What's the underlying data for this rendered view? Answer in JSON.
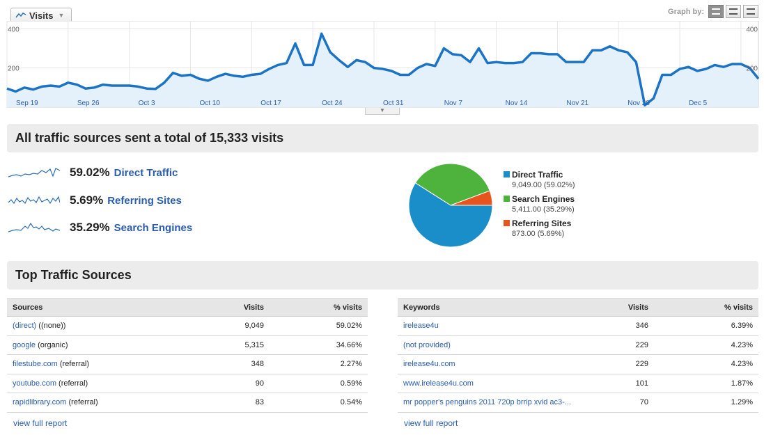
{
  "chart": {
    "tab_label": "Visits",
    "graph_by_label": "Graph by:",
    "y_tick_labels": [
      "400",
      "200"
    ],
    "x_tick_labels": [
      "Sep 19",
      "Sep 26",
      "Oct 3",
      "Oct 10",
      "Oct 17",
      "Oct 24",
      "Oct 31",
      "Nov 7",
      "Nov 14",
      "Nov 21",
      "Nov 28",
      "Dec 5"
    ]
  },
  "chart_data": [
    {
      "type": "area",
      "series": [
        {
          "name": "Visits",
          "values": [
            95,
            80,
            100,
            90,
            105,
            110,
            105,
            125,
            115,
            95,
            100,
            115,
            110,
            110,
            110,
            105,
            95,
            93,
            125,
            175,
            160,
            165,
            145,
            135,
            155,
            170,
            160,
            155,
            165,
            170,
            195,
            215,
            225,
            325,
            215,
            215,
            375,
            280,
            240,
            205,
            240,
            230,
            200,
            195,
            185,
            165,
            165,
            200,
            220,
            210,
            300,
            270,
            265,
            230,
            300,
            225,
            230,
            225,
            225,
            230,
            275,
            275,
            270,
            270,
            230,
            230,
            230,
            290,
            290,
            310,
            290,
            280,
            230,
            10,
            45,
            165,
            165,
            195,
            205,
            185,
            195,
            215,
            205,
            220,
            220,
            200,
            145
          ]
        }
      ],
      "ylim": [
        0,
        440
      ],
      "yticks": [
        200,
        400
      ],
      "grid": true
    },
    {
      "type": "pie",
      "categories": [
        "Direct Traffic",
        "Search Engines",
        "Referring Sites"
      ],
      "values": [
        9049.0,
        5411.0,
        873.0
      ],
      "percents": [
        59.02,
        35.29,
        5.69
      ]
    }
  ],
  "summary": {
    "title": "All traffic sources sent a total of 15,333 visits",
    "rows": [
      {
        "pct": "59.02%",
        "name": "Direct Traffic"
      },
      {
        "pct": "5.69%",
        "name": "Referring Sites"
      },
      {
        "pct": "35.29%",
        "name": "Search Engines"
      }
    ]
  },
  "pie_legend": [
    {
      "name": "Direct Traffic",
      "value": "9,049.00 (59.02%)"
    },
    {
      "name": "Search Engines",
      "value": "5,411.00 (35.29%)"
    },
    {
      "name": "Referring Sites",
      "value": "873.00 (5.69%)"
    }
  ],
  "colors": {
    "direct": "#1a8ec9",
    "search": "#4db33d",
    "referring": "#e8541e",
    "line": "#1a73c4",
    "fill": "#e5f1fa"
  },
  "top_sources": {
    "title": "Top Traffic Sources",
    "sources_table": {
      "headers": [
        "Sources",
        "Visits",
        "% visits"
      ],
      "rows": [
        {
          "link": "(direct)",
          "suffix": " ((none))",
          "visits": "9,049",
          "pct": "59.02%"
        },
        {
          "link": "google",
          "suffix": " (organic)",
          "visits": "5,315",
          "pct": "34.66%"
        },
        {
          "link": "filestube.com",
          "suffix": " (referral)",
          "visits": "348",
          "pct": "2.27%"
        },
        {
          "link": "youtube.com",
          "suffix": " (referral)",
          "visits": "90",
          "pct": "0.59%"
        },
        {
          "link": "rapidlibrary.com",
          "suffix": " (referral)",
          "visits": "83",
          "pct": "0.54%"
        }
      ],
      "view_full": "view full report"
    },
    "keywords_table": {
      "headers": [
        "Keywords",
        "Visits",
        "% visits"
      ],
      "rows": [
        {
          "link": "irelease4u",
          "visits": "346",
          "pct": "6.39%"
        },
        {
          "link": "(not provided)",
          "visits": "229",
          "pct": "4.23%"
        },
        {
          "link": "irelease4u.com",
          "visits": "229",
          "pct": "4.23%"
        },
        {
          "link": "www.irelease4u.com",
          "visits": "101",
          "pct": "1.87%"
        },
        {
          "link": "mr popper's penguins 2011 720p brrip xvid ac3-...",
          "visits": "70",
          "pct": "1.29%"
        }
      ],
      "view_full": "view full report"
    }
  }
}
